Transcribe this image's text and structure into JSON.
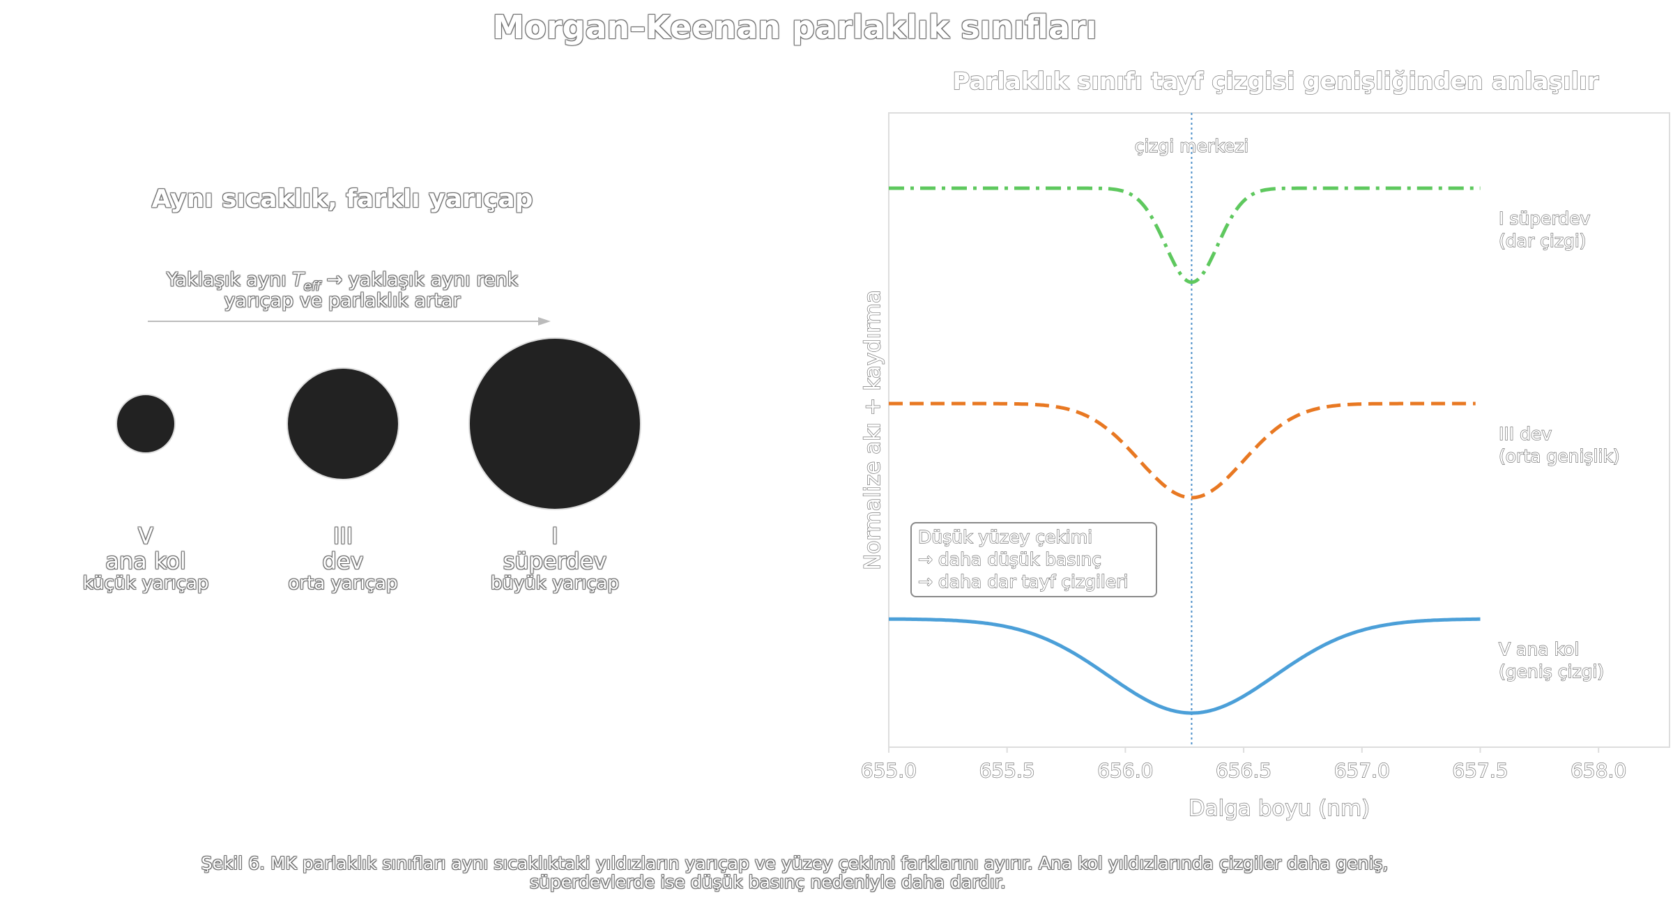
{
  "figure": {
    "title": "Morgan–Keenan parlaklık sınıfları",
    "caption_line1": "Şekil 6. MK parlaklık sınıfları aynı sıcaklıktaki yıldızların yarıçap ve yüzey çekimi farklarını ayırır. Ana kol yıldızlarında çizgiler daha geniş,",
    "caption_line2": "süperdevlerde ise düşük basınç nedeniyle daha dardır."
  },
  "left_panel": {
    "title": "Aynı sıcaklık, farklı yarıçap",
    "note_prefix": "Yaklaşık aynı ",
    "note_teff": "T",
    "note_teff_sub": "eff",
    "note_suffix": " → yaklaşık aynı renk",
    "note_line2": "yarıçap ve parlaklık artar",
    "star_color": "#222222",
    "stars": [
      {
        "roman": "V",
        "name": "ana kol",
        "size_label": "küçük yarıçap"
      },
      {
        "roman": "III",
        "name": "dev",
        "size_label": "orta yarıçap"
      },
      {
        "roman": "I",
        "name": "süperdev",
        "size_label": "büyük yarıçap"
      }
    ]
  },
  "chart_data": {
    "type": "line",
    "title": "Parlaklık sınıfı tayf çizgisi genişliğinden anlaşılır",
    "xlabel": "Dalga boyu (nm)",
    "ylabel": "Normalize akı + kaydırma",
    "xlim": [
      655.0,
      658.3
    ],
    "xticks": [
      "655.0",
      "655.5",
      "656.0",
      "656.5",
      "657.0",
      "657.5",
      "658.0"
    ],
    "grid": false,
    "line_center": 656.28,
    "line_center_label": "çizgi merkezi",
    "annotation": {
      "line1": "Düşük yüzey çekimi",
      "line2": "→ daha düşük basınç",
      "line3": "→ daha dar tayf çizgileri"
    },
    "series": [
      {
        "label_line1": "I süperdev",
        "label_line2": "(dar çizgi)",
        "color": "#5ec85e",
        "style": "dashdot",
        "offset": 2.0,
        "depth": 0.3,
        "sigma": 0.11,
        "x_end": 657.5
      },
      {
        "label_line1": "III dev",
        "label_line2": "(orta genişlik)",
        "color": "#e87822",
        "style": "dashed",
        "offset": 1.0,
        "depth": 0.3,
        "sigma": 0.22,
        "x_end": 657.48
      },
      {
        "label_line1": "V ana kol",
        "label_line2": "(geniş çizgi)",
        "color": "#4b9fd8",
        "style": "solid",
        "offset": 0.0,
        "depth": 0.3,
        "sigma": 0.35,
        "x_end": 657.5
      }
    ]
  }
}
